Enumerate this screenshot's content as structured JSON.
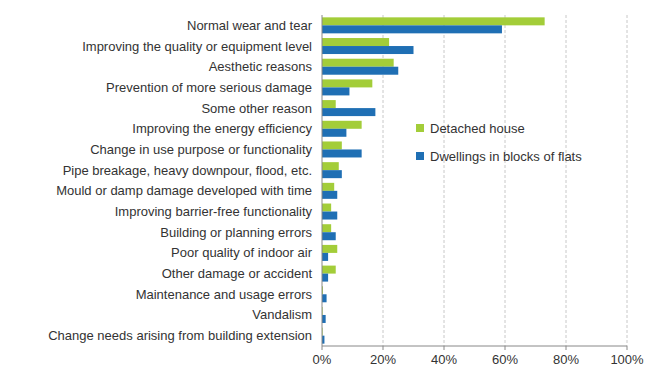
{
  "chart_data": {
    "type": "bar",
    "orientation": "horizontal",
    "grid": true,
    "legend": "right",
    "categories": [
      "Normal wear and tear",
      "Improving the quality or equipment level",
      "Aesthetic reasons",
      "Prevention of more serious damage",
      "Some other reason",
      "Improving the energy efficiency",
      "Change in use purpose or functionality",
      "Pipe breakage, heavy downpour, flood, etc.",
      "Mould or damp damage developed with time",
      "Improving barrier-free functionality",
      "Building or planning errors",
      "Poor quality of indoor air",
      "Other damage or accident",
      "Maintenance and usage errors",
      "Vandalism",
      "Change needs arising from building extension"
    ],
    "series": [
      {
        "name": "Detached house",
        "color": "#a3cd39",
        "values": [
          73,
          22,
          23.5,
          16.5,
          4.5,
          13,
          6.5,
          5.5,
          4,
          3,
          3,
          5,
          4.5,
          0.3,
          0.2,
          0.2
        ]
      },
      {
        "name": "Dwellings in blocks of flats",
        "color": "#1f6fb4",
        "values": [
          59,
          30,
          25,
          9,
          17.5,
          8,
          13,
          6.5,
          5,
          5,
          4.5,
          2,
          2,
          1.5,
          1.2,
          0.8
        ]
      }
    ],
    "xlim": [
      0,
      100
    ],
    "xticks": [
      {
        "value": 0,
        "label": "0%"
      },
      {
        "value": 20,
        "label": "20%"
      },
      {
        "value": 40,
        "label": "40%"
      },
      {
        "value": 60,
        "label": "60%"
      },
      {
        "value": 80,
        "label": "80%"
      },
      {
        "value": 100,
        "label": "100%"
      }
    ]
  }
}
